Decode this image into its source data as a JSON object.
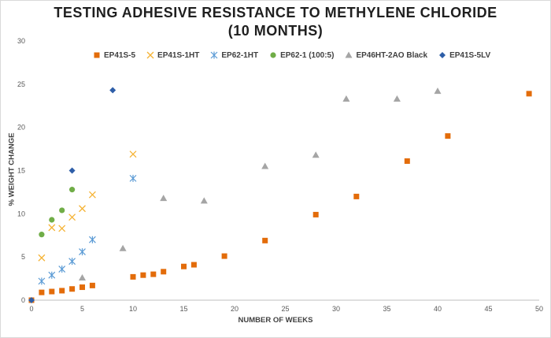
{
  "chart_data": {
    "type": "scatter",
    "title_line1": "TESTING ADHESIVE RESISTANCE TO METHYLENE CHLORIDE",
    "title_line2": "(10 MONTHS)",
    "xlabel": "NUMBER OF WEEKS",
    "ylabel": "% WEIGHT CHANGE",
    "xlim": [
      0,
      50
    ],
    "ylim": [
      0,
      30
    ],
    "xticks": [
      0,
      5,
      10,
      15,
      20,
      25,
      30,
      35,
      40,
      45,
      50
    ],
    "yticks": [
      0,
      5,
      10,
      15,
      20,
      25,
      30
    ],
    "grid": false,
    "legend_position": "top",
    "series": [
      {
        "name": "EP41S-5",
        "color": "#e36c0a",
        "marker": "square",
        "x": [
          0,
          1,
          2,
          3,
          4,
          5,
          6,
          10,
          11,
          12,
          13,
          15,
          16,
          19,
          23,
          28,
          32,
          37,
          41,
          49
        ],
        "y": [
          0,
          0.9,
          1.0,
          1.1,
          1.3,
          1.5,
          1.7,
          2.7,
          2.9,
          3.0,
          3.3,
          3.9,
          4.1,
          5.1,
          6.9,
          9.9,
          12.0,
          16.1,
          19.0,
          23.9
        ]
      },
      {
        "name": "EP41S-1HT",
        "color": "#f5b335",
        "marker": "x",
        "x": [
          1,
          2,
          3,
          4,
          5,
          6,
          10
        ],
        "y": [
          4.9,
          8.4,
          8.3,
          9.6,
          10.6,
          12.2,
          16.9
        ]
      },
      {
        "name": "EP62-1HT",
        "color": "#5b9bd5",
        "marker": "asterisk",
        "x": [
          1,
          2,
          3,
          4,
          5,
          6,
          10
        ],
        "y": [
          2.2,
          2.9,
          3.6,
          4.5,
          5.6,
          7.0,
          14.1
        ]
      },
      {
        "name": "EP62-1 (100:5)",
        "color": "#70ad47",
        "marker": "circle",
        "x": [
          1,
          2,
          3,
          4
        ],
        "y": [
          7.6,
          9.3,
          10.4,
          12.8
        ]
      },
      {
        "name": "EP46HT-2AO Black",
        "color": "#a5a5a5",
        "marker": "triangle",
        "x": [
          5,
          9,
          13,
          17,
          23,
          28,
          31,
          36,
          40
        ],
        "y": [
          2.6,
          6.0,
          11.8,
          11.5,
          15.5,
          16.8,
          23.3,
          23.3,
          24.2
        ]
      },
      {
        "name": "EP41S-5LV",
        "color": "#2e5ea8",
        "marker": "diamond",
        "x": [
          0,
          4,
          8
        ],
        "y": [
          0,
          15.0,
          24.3
        ]
      }
    ]
  }
}
